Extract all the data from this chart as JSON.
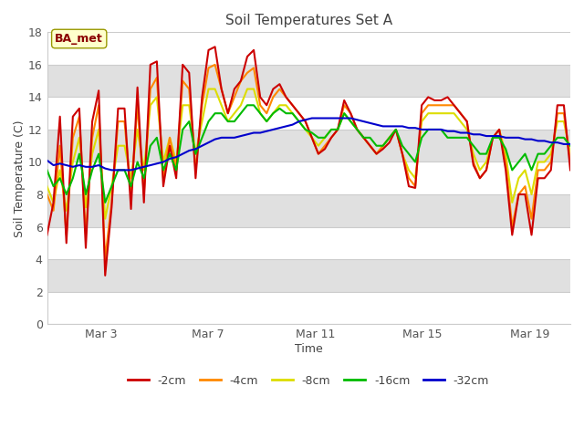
{
  "title": "Soil Temperatures Set A",
  "xlabel": "Time",
  "ylabel": "Soil Temperature (C)",
  "ylim": [
    0,
    18
  ],
  "yticks": [
    0,
    2,
    4,
    6,
    8,
    10,
    12,
    14,
    16,
    18
  ],
  "annotation": "BA_met",
  "bg_color": "#ffffff",
  "legend_labels": [
    "-2cm",
    "-4cm",
    "-8cm",
    "-16cm",
    "-32cm"
  ],
  "legend_colors": [
    "#cc0000",
    "#ff8800",
    "#dddd00",
    "#00bb00",
    "#0000cc"
  ],
  "x_tick_labels": [
    "Mar 3",
    "Mar 7",
    "Mar 11",
    "Mar 15",
    "Mar 19"
  ],
  "x_tick_positions": [
    2,
    6,
    10,
    14,
    18
  ],
  "xlim": [
    0,
    19.5
  ],
  "line_width": 1.5,
  "t2cm": [
    5.5,
    7.5,
    12.8,
    5.0,
    12.8,
    13.3,
    4.7,
    12.5,
    14.4,
    3.0,
    7.2,
    13.3,
    13.3,
    7.1,
    14.6,
    7.5,
    16.0,
    16.2,
    8.5,
    11.0,
    9.0,
    16.0,
    15.5,
    9.0,
    14.0,
    16.9,
    17.1,
    14.5,
    13.0,
    14.5,
    15.0,
    16.5,
    16.9,
    14.0,
    13.5,
    14.5,
    14.8,
    14.0,
    13.5,
    13.0,
    12.5,
    11.5,
    10.5,
    10.8,
    11.5,
    12.0,
    13.8,
    13.0,
    12.0,
    11.5,
    11.0,
    10.5,
    10.8,
    11.2,
    12.0,
    10.5,
    8.5,
    8.4,
    13.5,
    14.0,
    13.8,
    13.8,
    14.0,
    13.5,
    13.0,
    12.5,
    9.8,
    9.0,
    9.5,
    11.5,
    12.0,
    9.5,
    5.5,
    8.0,
    8.0,
    5.5,
    9.0,
    9.0,
    9.5,
    13.5,
    13.5,
    9.5
  ],
  "t4cm": [
    8.0,
    7.0,
    11.0,
    5.5,
    11.5,
    12.8,
    5.5,
    11.5,
    13.5,
    4.0,
    7.5,
    12.5,
    12.5,
    8.0,
    13.5,
    8.0,
    14.5,
    15.2,
    9.0,
    11.5,
    9.5,
    15.0,
    14.5,
    9.5,
    13.5,
    15.8,
    16.0,
    14.5,
    13.0,
    14.0,
    15.0,
    15.5,
    15.8,
    13.5,
    13.0,
    14.0,
    14.5,
    14.0,
    13.5,
    13.0,
    12.5,
    11.5,
    10.5,
    11.0,
    11.5,
    12.0,
    13.5,
    13.0,
    12.0,
    11.5,
    11.0,
    10.5,
    11.0,
    11.5,
    12.0,
    10.5,
    9.0,
    8.5,
    13.0,
    13.5,
    13.5,
    13.5,
    13.5,
    13.5,
    13.0,
    12.5,
    10.0,
    9.0,
    9.5,
    11.5,
    12.0,
    10.0,
    6.0,
    8.0,
    8.5,
    6.5,
    9.5,
    9.5,
    10.0,
    13.0,
    13.0,
    10.0
  ],
  "t8cm": [
    8.5,
    7.5,
    9.5,
    7.0,
    10.0,
    11.5,
    7.2,
    10.5,
    12.0,
    6.5,
    8.5,
    11.0,
    11.0,
    9.0,
    12.0,
    9.5,
    13.5,
    14.0,
    10.0,
    11.5,
    10.0,
    13.5,
    13.5,
    10.5,
    12.5,
    14.5,
    14.5,
    13.5,
    12.5,
    13.0,
    13.5,
    14.5,
    14.5,
    13.0,
    12.5,
    13.0,
    13.5,
    13.5,
    13.0,
    12.5,
    12.0,
    11.5,
    11.0,
    11.5,
    12.0,
    12.0,
    13.0,
    12.5,
    12.0,
    11.5,
    11.0,
    10.5,
    11.0,
    11.5,
    12.0,
    10.5,
    9.5,
    9.0,
    12.5,
    13.0,
    13.0,
    13.0,
    13.0,
    13.0,
    12.5,
    12.0,
    10.5,
    9.5,
    10.0,
    11.5,
    12.0,
    10.5,
    7.5,
    9.0,
    9.5,
    8.0,
    10.0,
    10.0,
    10.5,
    12.5,
    12.5,
    10.5
  ],
  "t16cm": [
    9.5,
    8.5,
    9.0,
    8.0,
    9.0,
    10.5,
    8.0,
    9.5,
    10.5,
    7.5,
    8.5,
    9.5,
    9.5,
    8.5,
    10.0,
    9.0,
    11.0,
    11.5,
    9.5,
    10.5,
    9.5,
    12.0,
    12.5,
    10.5,
    11.5,
    12.5,
    13.0,
    13.0,
    12.5,
    12.5,
    13.0,
    13.5,
    13.5,
    13.0,
    12.5,
    13.0,
    13.3,
    13.0,
    13.0,
    12.5,
    12.0,
    11.8,
    11.5,
    11.5,
    12.0,
    12.0,
    13.0,
    12.5,
    12.0,
    11.5,
    11.5,
    11.0,
    11.0,
    11.5,
    12.0,
    11.0,
    10.5,
    10.0,
    11.5,
    12.0,
    12.0,
    12.0,
    11.5,
    11.5,
    11.5,
    11.5,
    11.0,
    10.5,
    10.5,
    11.5,
    11.5,
    10.8,
    9.5,
    10.0,
    10.5,
    9.5,
    10.5,
    10.5,
    11.0,
    11.5,
    11.5,
    11.0
  ],
  "t32cm": [
    10.1,
    9.8,
    9.9,
    9.8,
    9.7,
    9.8,
    9.7,
    9.7,
    9.8,
    9.6,
    9.5,
    9.5,
    9.5,
    9.5,
    9.6,
    9.7,
    9.8,
    9.9,
    10.0,
    10.2,
    10.3,
    10.5,
    10.7,
    10.8,
    11.0,
    11.2,
    11.4,
    11.5,
    11.5,
    11.5,
    11.6,
    11.7,
    11.8,
    11.8,
    11.9,
    12.0,
    12.1,
    12.2,
    12.3,
    12.5,
    12.6,
    12.7,
    12.7,
    12.7,
    12.7,
    12.7,
    12.7,
    12.7,
    12.6,
    12.5,
    12.4,
    12.3,
    12.2,
    12.2,
    12.2,
    12.2,
    12.1,
    12.1,
    12.0,
    12.0,
    12.0,
    12.0,
    11.9,
    11.9,
    11.8,
    11.8,
    11.7,
    11.7,
    11.6,
    11.6,
    11.6,
    11.5,
    11.5,
    11.5,
    11.4,
    11.4,
    11.3,
    11.3,
    11.2,
    11.2,
    11.1,
    11.1
  ]
}
